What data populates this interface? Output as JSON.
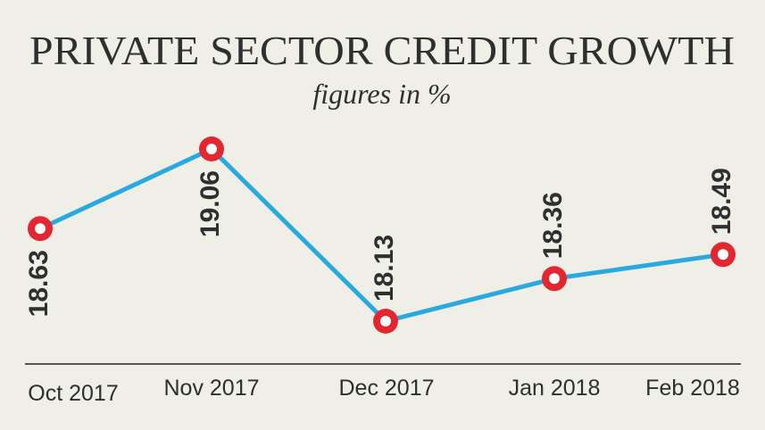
{
  "chart_data": {
    "type": "line",
    "title": "PRIVATE SECTOR CREDIT GROWTH",
    "subtitle": "figures in %",
    "categories": [
      "Oct 2017",
      "Nov 2017",
      "Dec 2017",
      "Jan 2018",
      "Feb 2018"
    ],
    "values": [
      18.63,
      19.06,
      18.13,
      18.36,
      18.49
    ],
    "color": "#2aa9e0",
    "marker_color": "#e3262f"
  }
}
